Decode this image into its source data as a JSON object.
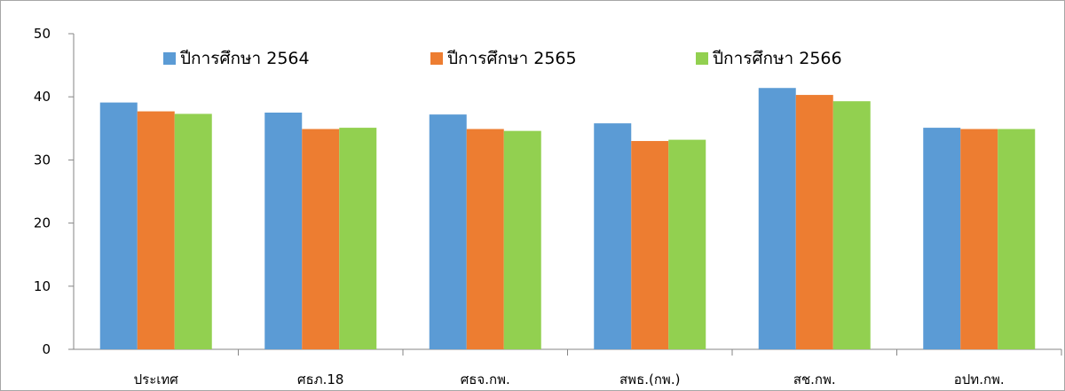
{
  "chart_data": {
    "type": "bar",
    "categories": [
      "ประเทศ",
      "ศธภ.18",
      "ศธจ.กพ.",
      "สพธ.(กพ.)",
      "สช.กพ.",
      "อปท.กพ."
    ],
    "series": [
      {
        "name": "ปีการศึกษา 2564",
        "color": "#5b9bd5",
        "values": [
          39.1,
          37.5,
          37.2,
          35.8,
          41.4,
          35.1
        ]
      },
      {
        "name": "ปีการศึกษา 2565",
        "color": "#ed7d31",
        "values": [
          37.7,
          34.9,
          34.9,
          33.0,
          40.3,
          34.9
        ]
      },
      {
        "name": "ปีการศึกษา 2566",
        "color": "#92d050",
        "values": [
          37.3,
          35.1,
          34.6,
          33.2,
          39.3,
          34.9
        ]
      }
    ],
    "yticks": [
      0,
      10,
      20,
      30,
      40,
      50
    ],
    "ylim": [
      0,
      50
    ],
    "grid": false,
    "legend_position": "top"
  }
}
